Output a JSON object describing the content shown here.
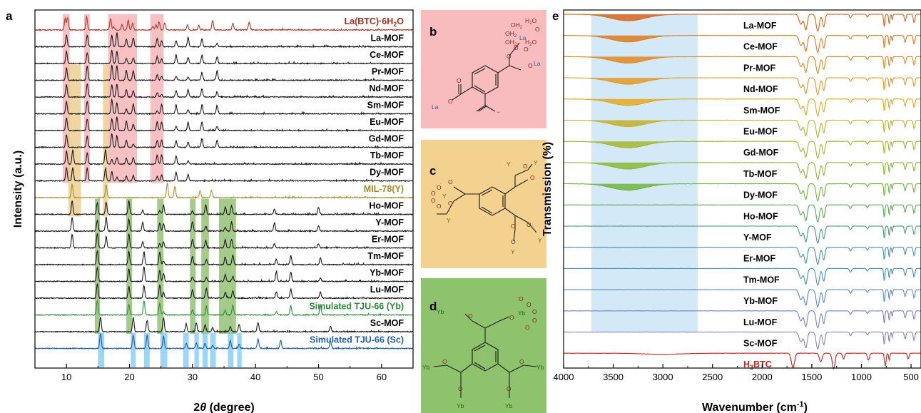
{
  "chart_data": [
    {
      "panel": "a",
      "type": "line",
      "xlabel_prefix": "2",
      "xlabel_theta": "θ",
      "xlabel_suffix": " (degree)",
      "ylabel": "Intensity (a.u.)",
      "xlim": [
        5,
        65
      ],
      "xticks": [
        10,
        20,
        30,
        40,
        50,
        60
      ],
      "tick_labels": [
        "10",
        "20",
        "30",
        "40",
        "50",
        "60"
      ],
      "grid": false,
      "offset_stacked": true,
      "highlight_bands": [
        {
          "color": "#f4a7ab",
          "rows": [
            0,
            9
          ],
          "ranges": [
            [
              9.4,
              10.5
            ],
            [
              12.8,
              13.7
            ],
            [
              16.6,
              21.2
            ],
            [
              23.3,
              25.4
            ]
          ]
        },
        {
          "color": "#e8c57c",
          "rows": [
            3,
            11
          ],
          "ranges": [
            [
              10.3,
              12.3
            ],
            [
              15.8,
              16.6
            ]
          ]
        },
        {
          "color": "#7fb55a",
          "rows": [
            11,
            18
          ],
          "ranges": [
            [
              14.5,
              15.3
            ],
            [
              19.5,
              20.4
            ],
            [
              24.4,
              25.4
            ],
            [
              29.6,
              30.5
            ],
            [
              31.4,
              32.6
            ],
            [
              34.2,
              36.9
            ]
          ]
        },
        {
          "color": "#74c3f1",
          "rows": [
            19,
            20
          ],
          "ranges": [
            [
              15.0,
              16.0
            ],
            [
              20.2,
              21.0
            ],
            [
              22.3,
              23.2
            ],
            [
              24.9,
              26.0
            ],
            [
              28.5,
              29.4
            ],
            [
              30.3,
              31.0
            ],
            [
              31.6,
              32.4
            ],
            [
              32.8,
              33.7
            ],
            [
              35.6,
              36.5
            ],
            [
              37.1,
              37.8
            ]
          ]
        }
      ],
      "series": [
        {
          "name": "La(BTC)·6H2O",
          "label_main": "La(BTC)·6H",
          "label_sub": "2",
          "label_tail": "O",
          "color": "#b0392b",
          "label_color": "#a3301f",
          "peaks": [
            9.8,
            10.2,
            13.2,
            17.0,
            17.5,
            18.8,
            19.8,
            20.5,
            23.7,
            24.2,
            24.7,
            25.6,
            29.2,
            31.0,
            33.2,
            36.4,
            39.0
          ]
        },
        {
          "name": "La-MOF",
          "color": "#1a1a1a",
          "label_color": "#000000",
          "peaks": [
            10.0,
            13.3,
            17.2,
            18.0,
            19.5,
            20.6,
            24.4,
            25.1,
            27.4,
            29.3,
            31.5,
            33.9
          ]
        },
        {
          "name": "Ce-MOF",
          "color": "#1a1a1a",
          "label_color": "#000000",
          "peaks": [
            10.0,
            13.3,
            17.2,
            18.0,
            19.5,
            20.6,
            24.4,
            25.1,
            27.4,
            29.3,
            31.5,
            33.9
          ]
        },
        {
          "name": "Pr-MOF",
          "color": "#1a1a1a",
          "label_color": "#000000",
          "peaks": [
            10.0,
            13.3,
            17.2,
            18.0,
            19.5,
            20.6,
            24.4,
            25.1,
            27.4,
            29.3,
            31.5,
            33.9
          ]
        },
        {
          "name": "Nd-MOF",
          "color": "#1a1a1a",
          "label_color": "#000000",
          "peaks": [
            10.0,
            13.3,
            17.2,
            18.0,
            19.5,
            20.6,
            24.4,
            25.1,
            27.4,
            29.3,
            31.5,
            33.9
          ]
        },
        {
          "name": "Sm-MOF",
          "color": "#1a1a1a",
          "label_color": "#000000",
          "peaks": [
            10.0,
            13.3,
            17.2,
            18.0,
            19.5,
            20.6,
            24.4,
            25.1,
            27.4,
            29.3,
            31.5,
            33.9
          ]
        },
        {
          "name": "Eu-MOF",
          "color": "#1a1a1a",
          "label_color": "#000000",
          "peaks": [
            10.0,
            13.3,
            17.2,
            18.0,
            19.5,
            20.6,
            24.4,
            25.1,
            27.4,
            29.3,
            31.5,
            33.9
          ]
        },
        {
          "name": "Gd-MOF",
          "color": "#1a1a1a",
          "label_color": "#000000",
          "peaks": [
            10.0,
            13.3,
            17.2,
            18.0,
            19.5,
            20.6,
            24.4,
            25.1,
            27.4,
            29.3,
            31.5,
            33.9
          ]
        },
        {
          "name": "Tb-MOF",
          "color": "#1a1a1a",
          "label_color": "#000000",
          "peaks": [
            10.0,
            11.0,
            13.3,
            16.2,
            17.2,
            18.0,
            19.5,
            20.6,
            24.4,
            25.1,
            27.4,
            29.3
          ]
        },
        {
          "name": "Dy-MOF",
          "color": "#1a1a1a",
          "label_color": "#000000",
          "peaks": [
            10.0,
            11.0,
            13.3,
            16.2,
            17.2,
            18.0,
            19.5,
            20.6,
            24.4,
            25.1,
            27.4,
            29.3
          ]
        },
        {
          "name": "MIL-78(Y)",
          "color": "#a8902c",
          "label_color": "#a58a28",
          "peaks": [
            10.9,
            16.3,
            26.0,
            27.2,
            31.2,
            33.0
          ]
        },
        {
          "name": "Ho-MOF",
          "color": "#1a1a1a",
          "label_color": "#000000",
          "peaks": [
            10.9,
            14.9,
            16.3,
            19.9,
            22.1,
            24.8,
            25.4,
            30.0,
            32.1,
            35.2,
            36.2,
            43.0,
            50.0
          ]
        },
        {
          "name": "Y-MOF",
          "color": "#1a1a1a",
          "label_color": "#000000",
          "peaks": [
            10.9,
            14.9,
            16.3,
            19.9,
            22.1,
            24.8,
            25.4,
            30.0,
            32.1,
            35.2,
            36.2,
            43.0,
            50.0
          ]
        },
        {
          "name": "Er-MOF",
          "color": "#1a1a1a",
          "label_color": "#000000",
          "peaks": [
            10.9,
            14.9,
            16.3,
            19.9,
            22.1,
            24.8,
            25.4,
            30.0,
            32.1,
            35.2,
            36.2,
            43.0,
            50.0
          ]
        },
        {
          "name": "Tm-MOF",
          "color": "#1a1a1a",
          "label_color": "#000000",
          "peaks": [
            14.9,
            19.9,
            22.3,
            24.8,
            25.4,
            30.0,
            32.2,
            35.2,
            36.4,
            43.3,
            45.6,
            50.3
          ]
        },
        {
          "name": "Yb-MOF",
          "color": "#1a1a1a",
          "label_color": "#000000",
          "peaks": [
            14.9,
            19.9,
            22.3,
            24.8,
            25.4,
            30.0,
            32.2,
            35.2,
            36.4,
            43.3,
            45.6,
            50.3
          ]
        },
        {
          "name": "Lu-MOF",
          "color": "#1a1a1a",
          "label_color": "#000000",
          "peaks": [
            14.9,
            19.9,
            22.3,
            24.8,
            25.4,
            30.0,
            32.2,
            35.2,
            36.4,
            43.3,
            45.6,
            50.3
          ]
        },
        {
          "name": "Simulated TJU-66 (Yb)",
          "color": "#2e8b3e",
          "label_color": "#2e8b3e",
          "peaks": [
            14.9,
            19.9,
            22.3,
            24.8,
            25.4,
            30.0,
            32.2,
            35.2,
            36.4,
            43.3,
            45.6,
            50.3
          ]
        },
        {
          "name": "Sc-MOF",
          "color": "#1a1a1a",
          "label_color": "#000000",
          "peaks": [
            15.4,
            20.6,
            22.8,
            25.4,
            29.0,
            30.6,
            32.0,
            33.2,
            36.0,
            37.4,
            40.4,
            51.9
          ]
        },
        {
          "name": "Simulated TJU-66 (Sc)",
          "color": "#1f5ea8",
          "label_color": "#1f5ea8",
          "peaks": [
            15.4,
            20.6,
            22.8,
            25.4,
            29.0,
            30.6,
            32.0,
            33.2,
            36.0,
            37.4,
            40.4,
            44.0,
            51.9
          ]
        }
      ]
    },
    {
      "panel": "e",
      "type": "line",
      "xlabel_main": "Wavenumber (cm",
      "xlabel_sup": "-1",
      "xlabel_tail": ")",
      "ylabel": "Transmission (%)",
      "xlim": [
        4000,
        400
      ],
      "x_reversed": true,
      "xticks": [
        4000,
        3500,
        3000,
        2500,
        2000,
        1500,
        1000,
        500
      ],
      "tick_labels": [
        "4000",
        "3500",
        "3000",
        "2500",
        "2000",
        "1500",
        "1000",
        "500"
      ],
      "grid": false,
      "offset_stacked": true,
      "highlight_band": {
        "x_range": [
          3720,
          2650
        ],
        "color": "#d3e9f7"
      },
      "series": [
        {
          "name": "La-MOF",
          "color": "#d9661c",
          "fill": true
        },
        {
          "name": "Ce-MOF",
          "color": "#de7a1e",
          "fill": true
        },
        {
          "name": "Pr-MOF",
          "color": "#e08a1f",
          "fill": true
        },
        {
          "name": "Nd-MOF",
          "color": "#e39a21",
          "fill": true
        },
        {
          "name": "Sm-MOF",
          "color": "#e2aa1f",
          "fill": true
        },
        {
          "name": "Eu-MOF",
          "color": "#c2b127",
          "fill": true
        },
        {
          "name": "Gd-MOF",
          "color": "#a5b62e",
          "fill": true
        },
        {
          "name": "Tb-MOF",
          "color": "#8ab735",
          "fill": true
        },
        {
          "name": "Dy-MOF",
          "color": "#73b33c",
          "fill": true
        },
        {
          "name": "Ho-MOF",
          "color": "#5aa758",
          "fill": false
        },
        {
          "name": "Y-MOF",
          "color": "#4a9c7d",
          "fill": false
        },
        {
          "name": "Er-MOF",
          "color": "#4894a3",
          "fill": false
        },
        {
          "name": "Tm-MOF",
          "color": "#4a8ec3",
          "fill": false
        },
        {
          "name": "Yb-MOF",
          "color": "#5d88c8",
          "fill": false
        },
        {
          "name": "Lu-MOF",
          "color": "#7a82c3",
          "fill": false
        },
        {
          "name": "Sc-MOF",
          "color": "#8a7fbe",
          "fill": false
        },
        {
          "name": "H3BTC",
          "label_main": "H",
          "label_sub": "3",
          "label_tail": "BTC",
          "color": "#cc2121",
          "label_color": "#cc2121",
          "fill": false,
          "ligand": true
        }
      ]
    }
  ],
  "panels": {
    "a": {
      "letter": "a"
    },
    "b": {
      "letter": "b",
      "background": "#f8bcbf",
      "color": "#8b2323",
      "atoms": {
        "oh2_1": "OH",
        "oh2_1_sub": "2",
        "h2o_1": "H",
        "h2o_1_sub": "2",
        "h2o_1_tail": "O",
        "oh2_2": "OH",
        "oh2_2_sub": "2",
        "la_center": "La",
        "o_a": "O",
        "o_b": "O",
        "oh2_3": "OH",
        "oh2_3_sub": "2",
        "h2o_2": "H",
        "h2o_2_sub": "2",
        "h2o_2_tail": "O",
        "o_c": "O",
        "la_right": "La",
        "o_d": "O",
        "o_e": "O",
        "la_left": "La",
        "o_f": "O",
        "o_g": "O",
        "o_minus": "−"
      }
    },
    "c": {
      "letter": "c",
      "background": "#f3d18f",
      "color": "#8b2323",
      "metal_label_color": "#6b5d1c",
      "atoms": {
        "y_top": "Y",
        "y_top2": "Y",
        "o_1": "O",
        "o_2": "O",
        "o_3": "O",
        "o_4": "O",
        "o_5": "O",
        "o_6": "O",
        "o_7": "O",
        "o_8": "O",
        "y_left": "Y",
        "y_center": "Y",
        "y_br": "Y",
        "y_bottom": "Y",
        "o_9": "O",
        "o_10": "O",
        "o_11": "O"
      }
    },
    "d": {
      "letter": "d",
      "background": "#8ec26c",
      "color": "#8b2323",
      "metal_label_color": "#1e6b1e",
      "atoms": {
        "yb_tl": "Yb",
        "yb_center": "Yb",
        "yb_l": "Yb",
        "yb_r": "Yb",
        "yb_bl": "Yb",
        "yb_br": "Yb",
        "o": "O"
      }
    }
  }
}
